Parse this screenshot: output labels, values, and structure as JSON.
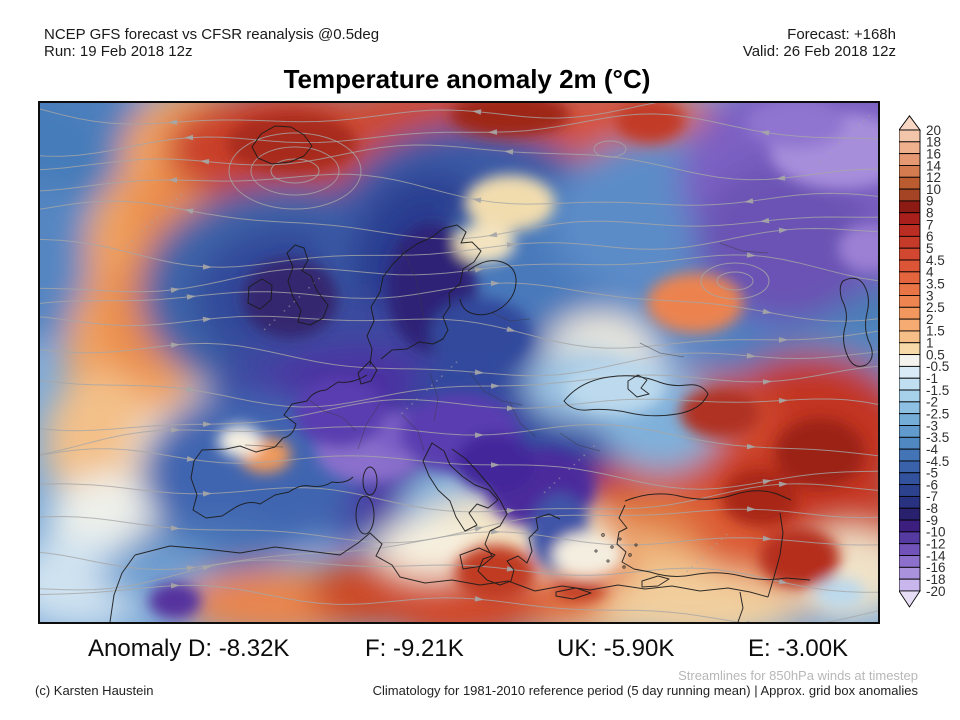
{
  "header": {
    "left_line1": "NCEP GFS forecast vs CFSR reanalysis @0.5deg",
    "left_line2": "Run: 19 Feb 2018 12z",
    "right_line1": "Forecast: +168h",
    "right_line2": "Valid: 26 Feb 2018 12z"
  },
  "title": "Temperature anomaly 2m (°C)",
  "colorbar": {
    "boundary_labels": [
      "20",
      "18",
      "16",
      "14",
      "12",
      "10",
      "9",
      "8",
      "7",
      "6",
      "5",
      "4.5",
      "4",
      "3.5",
      "3",
      "2.5",
      "2",
      "1.5",
      "1",
      "0.5",
      "-0.5",
      "-1",
      "-1.5",
      "-2",
      "-2.5",
      "-3",
      "-3.5",
      "-4",
      "-4.5",
      "-5",
      "-6",
      "-7",
      "-8",
      "-9",
      "-10",
      "-12",
      "-14",
      "-16",
      "-18",
      "-20"
    ],
    "arrow_top_color": "#f7d7c3",
    "arrow_bottom_color": "#e7ddf6",
    "box_colors": [
      "#f3c5aa",
      "#efb08e",
      "#e69872",
      "#d47c50",
      "#ba5c30",
      "#a44424",
      "#8c1b14",
      "#a81f1b",
      "#bb2d23",
      "#c63a2a",
      "#d14730",
      "#db5536",
      "#e3643d",
      "#e97446",
      "#ee8551",
      "#f2985f",
      "#f5ab72",
      "#f7bf88",
      "#f8d9a8",
      "#f4f3ee",
      "#d8ebf6",
      "#c0dff1",
      "#a7d0ea",
      "#8dc0e2",
      "#75add9",
      "#619bce",
      "#5089c2",
      "#4375b6",
      "#3a62aa",
      "#33529d",
      "#2d428f",
      "#293280",
      "#2a216e",
      "#3c1e7e",
      "#553aa2",
      "#7152b8",
      "#8d70cb",
      "#ab92dc",
      "#c9b6ec"
    ]
  },
  "anomaly_summary": {
    "items": [
      {
        "region": "D",
        "value": "-8.32K",
        "text": "Anomaly D: -8.32K"
      },
      {
        "region": "F",
        "value": "-9.21K",
        "text": "F: -9.21K"
      },
      {
        "region": "UK",
        "value": "-5.90K",
        "text": "UK: -5.90K"
      },
      {
        "region": "E",
        "value": "-3.00K",
        "text": "E: -3.00K"
      }
    ]
  },
  "footer": {
    "streamlines_note": "Streamlines for 850hPa winds at timestep",
    "copyright": "(c) Karsten Haustein",
    "climatology_note": "Climatology for 1981-2010 reference period (5 day running mean) | Approx. grid box anomalies"
  },
  "map": {
    "unit": "°C",
    "palette": {
      "base": "#7fabd8",
      "streamline": "#a6a6a6",
      "coastline": "#1b1b1b",
      "country_border": "#3a3a3a"
    }
  }
}
